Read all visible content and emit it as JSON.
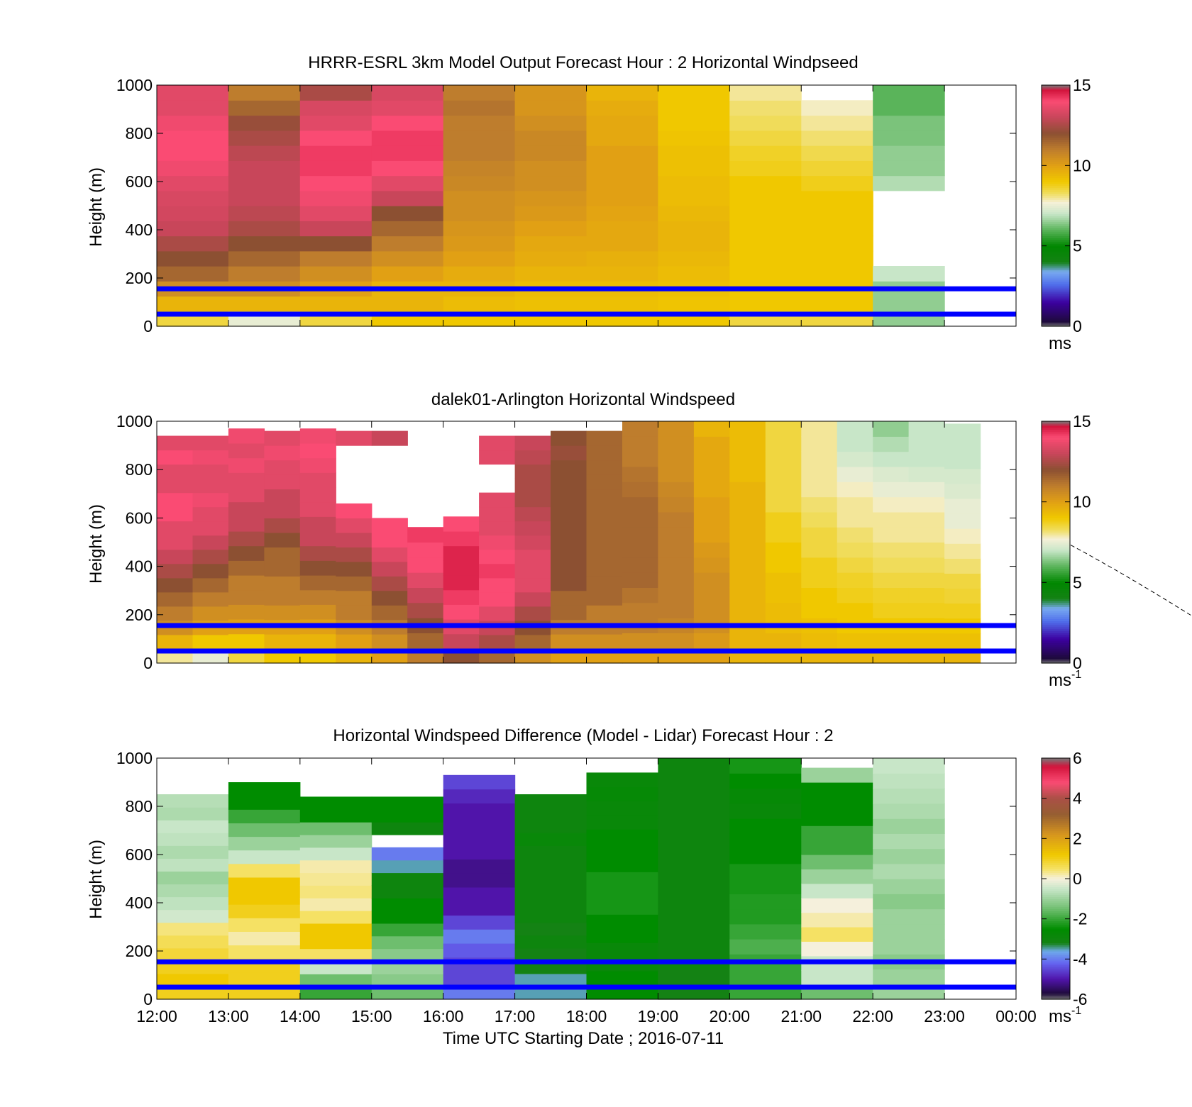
{
  "figure": {
    "xaxis": {
      "label": "Time UTC  Starting Date ; 2016-07-11",
      "ticks": [
        "12:00",
        "13:00",
        "14:00",
        "15:00",
        "16:00",
        "17:00",
        "18:00",
        "19:00",
        "20:00",
        "21:00",
        "22:00",
        "23:00",
        "00:00"
      ]
    }
  },
  "chart_data": [
    {
      "type": "heatmap",
      "title": "HRRR-ESRL 3km Model Output   Forecast Hour : 2 Horizontal Windpseed",
      "ylabel": "Height (m)",
      "ylim": [
        0,
        1000
      ],
      "yticks": [
        "0",
        "200",
        "400",
        "600",
        "800",
        "1000"
      ],
      "xlim": [
        "12:00",
        "00:00"
      ],
      "colorbar": {
        "range": [
          0,
          15
        ],
        "ticks": [
          "0",
          "5",
          "10",
          "15"
        ],
        "unit": "ms",
        "unit_sup": ""
      },
      "reference_lines_m": [
        50,
        155
      ],
      "columns": [
        {
          "time": "12:00",
          "top_m": 1000,
          "values": [
            8.5,
            9.5,
            10.5,
            11.5,
            12,
            12.5,
            13,
            13.2,
            13.3,
            13.5,
            13.8,
            14,
            14,
            13.8,
            13.5,
            13.5
          ]
        },
        {
          "time": "13:00",
          "top_m": 1000,
          "values": [
            7.5,
            9.5,
            10.5,
            11,
            11.5,
            12,
            12.5,
            12.8,
            13,
            13,
            13,
            12.8,
            12.5,
            12.2,
            11.5,
            11
          ]
        },
        {
          "time": "14:00",
          "top_m": 1000,
          "values": [
            8.5,
            9.5,
            10,
            10.5,
            11,
            12,
            13,
            13.5,
            13.8,
            14,
            14.2,
            14.2,
            14,
            13.5,
            13.3,
            12.5
          ]
        },
        {
          "time": "15:00",
          "top_m": 1000,
          "values": [
            9,
            9.5,
            9.5,
            10,
            10.5,
            11,
            11.5,
            12,
            13,
            13.5,
            14,
            14.2,
            14.2,
            14,
            13.5,
            13.3
          ]
        },
        {
          "time": "16:00",
          "top_m": 1000,
          "values": [
            9,
            9.3,
            9.5,
            9.7,
            10,
            10.2,
            10.3,
            10.5,
            10.5,
            10.7,
            10.8,
            11,
            11,
            11,
            11.2,
            11
          ]
        },
        {
          "time": "17:00",
          "top_m": 1000,
          "values": [
            9,
            9.2,
            9.3,
            9.5,
            9.7,
            9.8,
            10,
            10.2,
            10.3,
            10.5,
            10.5,
            10.7,
            10.7,
            10.5,
            10.3,
            10.3
          ]
        },
        {
          "time": "18:00",
          "top_m": 1000,
          "values": [
            9,
            9.2,
            9.3,
            9.5,
            9.6,
            9.8,
            9.8,
            9.9,
            10,
            10,
            10,
            10,
            9.8,
            9.8,
            9.7,
            9.5
          ]
        },
        {
          "time": "19:00",
          "top_m": 1000,
          "values": [
            9,
            9.1,
            9.2,
            9.3,
            9.4,
            9.5,
            9.5,
            9.4,
            9.3,
            9.3,
            9.2,
            9.2,
            9.1,
            9,
            9,
            9
          ]
        },
        {
          "time": "20:00",
          "top_m": 1000,
          "values": [
            8.5,
            9,
            9,
            9,
            9,
            9,
            9,
            9,
            9,
            9,
            8.8,
            8.7,
            8.5,
            8.3,
            8.2,
            8
          ]
        },
        {
          "time": "21:00",
          "top_m": 1000,
          "values": [
            8.5,
            9,
            9,
            9,
            9,
            9,
            9,
            9,
            9,
            8.8,
            8.6,
            8.4,
            8.2,
            8,
            7.8,
            null
          ]
        },
        {
          "time": "22:00",
          "top_m": 1000,
          "values": [
            6.5,
            6.5,
            6.5,
            7,
            null,
            null,
            null,
            null,
            null,
            6.8,
            6.5,
            6.5,
            6.3,
            6.3,
            6,
            6
          ]
        }
      ]
    },
    {
      "type": "heatmap",
      "title": "dalek01-Arlington  Horizontal Windspeed",
      "ylabel": "Height (m)",
      "ylim": [
        0,
        1000
      ],
      "yticks": [
        "0",
        "200",
        "400",
        "600",
        "800",
        "1000"
      ],
      "xlim": [
        "12:00",
        "00:00"
      ],
      "colorbar": {
        "range": [
          0,
          15
        ],
        "ticks": [
          "0",
          "5",
          "10",
          "15"
        ],
        "unit": "ms",
        "unit_sup": "-1"
      },
      "reference_lines_m": [
        50,
        155
      ],
      "columns": [
        {
          "time": "12:00",
          "top_m": 940,
          "values": [
            8,
            9.5,
            10.5,
            11,
            11.5,
            12,
            12.5,
            13,
            13.5,
            13.5,
            14,
            14,
            13.5,
            13.5,
            14,
            13.5
          ]
        },
        {
          "time": "12:30",
          "top_m": 940,
          "values": [
            7.5,
            9,
            10,
            10.5,
            11,
            11.5,
            12,
            12.5,
            13,
            13.5,
            13.5,
            13.8,
            13.5,
            13.5,
            13.8,
            13.5
          ]
        },
        {
          "time": "13:00",
          "top_m": 970,
          "values": [
            8.5,
            9,
            10,
            10.5,
            11,
            11,
            11.5,
            12,
            12.5,
            13,
            13,
            13.5,
            13.5,
            13.8,
            13.5,
            13.8
          ]
        },
        {
          "time": "13:30",
          "top_m": 960,
          "values": [
            9,
            9.5,
            10,
            10.5,
            11,
            11,
            11.5,
            11.5,
            12,
            12.5,
            13,
            13,
            13.5,
            13.5,
            13.8,
            13.5
          ]
        },
        {
          "time": "14:00",
          "top_m": 970,
          "values": [
            9,
            9.5,
            10,
            10.5,
            11,
            11.5,
            12,
            12.5,
            13,
            13,
            13.5,
            13.5,
            13.5,
            13.8,
            14,
            13.8
          ]
        },
        {
          "time": "14:30",
          "top_m": 960,
          "values": [
            9.5,
            10,
            10.5,
            11,
            11,
            11.5,
            12,
            12.5,
            13,
            13.5,
            14,
            null,
            null,
            null,
            null,
            13.5
          ]
        },
        {
          "time": "15:00",
          "top_m": 960,
          "values": [
            10,
            10.5,
            11,
            11.5,
            12,
            12.5,
            13,
            13.5,
            14,
            14,
            null,
            null,
            null,
            null,
            null,
            13
          ]
        },
        {
          "time": "15:30",
          "top_m": 1000,
          "values": [
            11,
            11.5,
            12,
            12.5,
            13,
            13.5,
            14,
            14,
            14.2,
            null,
            null,
            null,
            null,
            null,
            null,
            null
          ]
        },
        {
          "time": "16:00",
          "top_m": 970,
          "values": [
            12,
            13,
            13.5,
            14,
            14.2,
            14.5,
            14.5,
            14.5,
            14.2,
            14,
            null,
            null,
            null,
            null,
            null,
            null
          ]
        },
        {
          "time": "16:30",
          "top_m": 940,
          "values": [
            11.5,
            12.5,
            13,
            13.5,
            14,
            14,
            14.2,
            14,
            13.8,
            13.5,
            13.5,
            13.5,
            null,
            null,
            13.5,
            13.5
          ]
        },
        {
          "time": "17:00",
          "top_m": 940,
          "values": [
            10.5,
            11.5,
            12,
            12.5,
            13,
            13.5,
            13.5,
            13.5,
            13.2,
            13,
            12.8,
            12.5,
            12.5,
            12.5,
            12.8,
            13
          ]
        },
        {
          "time": "17:30",
          "top_m": 960,
          "values": [
            10,
            10.5,
            11,
            11.5,
            11.5,
            12,
            12,
            12,
            12,
            12,
            12,
            12,
            12,
            12,
            12.2,
            12
          ]
        },
        {
          "time": "18:00",
          "top_m": 960,
          "values": [
            10,
            10.5,
            11,
            11,
            11.5,
            11.5,
            11.5,
            11.5,
            11.5,
            11.5,
            11.5,
            11.5,
            11.5,
            11.5,
            11.5,
            11.5
          ]
        },
        {
          "time": "18:30",
          "top_m": 1000,
          "values": [
            10,
            10.5,
            11,
            11,
            11.2,
            11.5,
            11.5,
            11.5,
            11.5,
            11.5,
            11.5,
            11.3,
            11.2,
            11,
            11,
            11
          ]
        },
        {
          "time": "19:00",
          "top_m": 1000,
          "values": [
            10,
            10.5,
            10.8,
            11,
            11,
            11,
            11,
            11,
            11,
            11,
            10.8,
            10.7,
            10.5,
            10.5,
            10.5,
            10.5
          ]
        },
        {
          "time": "19:30",
          "top_m": 1000,
          "values": [
            10,
            10.2,
            10.5,
            10.5,
            10.5,
            10.5,
            10.3,
            10.2,
            10,
            10,
            10,
            9.8,
            9.8,
            9.8,
            9.8,
            9.5
          ]
        },
        {
          "time": "20:00",
          "top_m": 1000,
          "values": [
            9.5,
            9.5,
            9.5,
            9.5,
            9.5,
            9.5,
            9.5,
            9.5,
            9.5,
            9.5,
            9.5,
            9.5,
            9.3,
            9.3,
            9.3,
            9.3
          ]
        },
        {
          "time": "20:30",
          "top_m": 1000,
          "values": [
            9.5,
            9.5,
            9.3,
            9.3,
            9.2,
            9.2,
            9,
            9,
            8.8,
            8.8,
            8.5,
            8.5,
            8.5,
            8.5,
            8.5,
            8.5
          ]
        },
        {
          "time": "21:00",
          "top_m": 1000,
          "values": [
            9.5,
            9.3,
            9.2,
            9,
            9,
            8.8,
            8.8,
            8.5,
            8.5,
            8.3,
            8.2,
            8,
            8,
            8,
            8,
            8
          ]
        },
        {
          "time": "21:30",
          "top_m": 1000,
          "values": [
            9.5,
            9.2,
            9,
            9,
            8.8,
            8.7,
            8.5,
            8.3,
            8.2,
            8,
            8,
            7.8,
            7.5,
            7.2,
            7,
            7
          ]
        },
        {
          "time": "22:00",
          "top_m": 1000,
          "values": [
            9.5,
            9.2,
            9,
            8.8,
            8.7,
            8.5,
            8.3,
            8.2,
            8,
            8,
            7.8,
            7.5,
            7.3,
            7,
            6.8,
            6.5
          ]
        },
        {
          "time": "22:30",
          "top_m": 1000,
          "values": [
            9.5,
            9.2,
            9,
            8.8,
            8.7,
            8.5,
            8.3,
            8.2,
            8,
            8,
            7.8,
            7.5,
            7.2,
            7,
            7,
            7
          ]
        },
        {
          "time": "23:00",
          "top_m": 990,
          "values": [
            9.5,
            9.2,
            9,
            8.8,
            8.6,
            8.5,
            8.2,
            8,
            7.8,
            7.5,
            7.5,
            7.3,
            7.2,
            7,
            7,
            7
          ]
        }
      ]
    },
    {
      "type": "heatmap",
      "title": "Horizontal Windspeed Difference (Model - Lidar) Forecast Hour : 2",
      "ylabel": "Height (m)",
      "ylim": [
        0,
        1000
      ],
      "yticks": [
        "0",
        "200",
        "400",
        "600",
        "800",
        "1000"
      ],
      "xlim": [
        "12:00",
        "00:00"
      ],
      "colorbar": {
        "range": [
          -6,
          6
        ],
        "ticks": [
          "-6",
          "-4",
          "-2",
          "0",
          "2",
          "4",
          "6"
        ],
        "unit": "ms",
        "unit_sup": "-1"
      },
      "reference_lines_m": [
        50,
        155
      ],
      "columns": [
        {
          "time": "12:00",
          "top_m": 850,
          "values": [
            1,
            1.2,
            1,
            0.8,
            0.6,
            0.4,
            -0.4,
            -0.6,
            -0.8,
            -1,
            -0.6,
            -0.8,
            -0.6,
            -0.5,
            -0.8,
            -0.7
          ]
        },
        {
          "time": "13:00",
          "top_m": 900,
          "values": [
            1,
            1,
            1,
            0.5,
            0.2,
            0.5,
            1,
            1.2,
            1.2,
            0.5,
            -0.5,
            -1,
            -1.5,
            -2,
            -2.5,
            -2.5
          ]
        },
        {
          "time": "14:00",
          "top_m": 840,
          "values": [
            -2,
            -1.5,
            -0.5,
            0.5,
            1.2,
            1.2,
            0.5,
            0.2,
            0.4,
            0.3,
            0.2,
            -0.5,
            -1,
            -1.5,
            -2.5,
            -2.5
          ]
        },
        {
          "time": "15:00",
          "top_m": 840,
          "values": [
            -1.5,
            -1.2,
            -1,
            -1.2,
            -1.5,
            -2,
            -2.5,
            -2.5,
            -3,
            -3,
            -3.5,
            -4,
            null,
            -3,
            -2.5,
            -2.5
          ]
        },
        {
          "time": "16:00",
          "top_m": 930,
          "values": [
            -4,
            -4.5,
            -4.5,
            -4.3,
            -4,
            -4.5,
            -5,
            -5,
            -5.2,
            -5.2,
            -5,
            -5,
            -5,
            -5,
            -4.8,
            -4.5
          ]
        },
        {
          "time": "17:00",
          "top_m": 850,
          "values": [
            -3.5,
            -3.5,
            -3.2,
            -3.2,
            -3,
            -3.2,
            -3,
            -3,
            -3,
            -3,
            -3,
            -3,
            -2.8,
            -3,
            -3,
            -3
          ]
        },
        {
          "time": "18:00",
          "top_m": 940,
          "values": [
            -2.5,
            -2.5,
            -2.8,
            -2.8,
            -2.5,
            -2.5,
            -2.3,
            -2.3,
            -2.3,
            -2.5,
            -2.5,
            -2.5,
            -2.8,
            -2.8,
            -2.7,
            -2.8
          ]
        },
        {
          "time": "19:00",
          "top_m": 1000,
          "values": [
            -3.2,
            -3.2,
            -3,
            -3,
            -3,
            -3,
            -3,
            -3,
            -3,
            -3,
            -3,
            -3,
            -3,
            -3,
            -3,
            -3
          ]
        },
        {
          "time": "20:00",
          "top_m": 1000,
          "values": [
            -2,
            -2,
            -2,
            -1.8,
            -2,
            -2.2,
            -2.2,
            -2.3,
            -2.3,
            -2.5,
            -2.5,
            -2.5,
            -2.8,
            -2.7,
            -2.5,
            -2.3
          ]
        },
        {
          "time": "21:00",
          "top_m": 960,
          "values": [
            -1.5,
            -0.5,
            -0.5,
            0,
            0.5,
            0.2,
            0,
            -0.5,
            -1,
            -1.5,
            -2,
            -2,
            -2.5,
            -2.5,
            -2.5,
            -1
          ]
        },
        {
          "time": "22:00",
          "top_m": 1000,
          "values": [
            -1,
            -1,
            -1.2,
            -1,
            -1,
            -1,
            -1.2,
            -1,
            -0.8,
            -1,
            -0.8,
            -1,
            -0.8,
            -0.7,
            -0.6,
            -0.5
          ]
        }
      ]
    }
  ]
}
